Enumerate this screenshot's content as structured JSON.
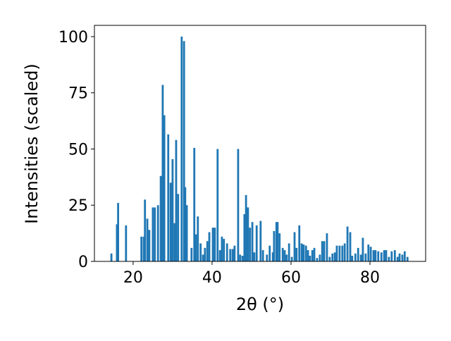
{
  "chart_data": {
    "type": "bar",
    "xlabel": "2θ (°)",
    "ylabel": "Intensities (scaled)",
    "color": "#1f77b4",
    "x": [
      14.5,
      15.9,
      16.2,
      18.2,
      22.1,
      22.7,
      23.0,
      23.6,
      24.1,
      25.0,
      25.5,
      26.3,
      27.0,
      27.5,
      27.9,
      28.9,
      29.5,
      30.0,
      30.5,
      30.9,
      31.4,
      32.3,
      32.9,
      33.2,
      33.6,
      34.8,
      35.5,
      35.9,
      36.4,
      37.1,
      37.7,
      38.2,
      38.8,
      39.3,
      40.2,
      40.7,
      41.4,
      42.0,
      42.5,
      43.0,
      43.8,
      44.6,
      45.2,
      45.7,
      46.6,
      47.1,
      47.7,
      48.2,
      48.6,
      49.1,
      49.6,
      50.2,
      50.7,
      51.3,
      52.3,
      52.9,
      53.9,
      54.6,
      55.4,
      55.7,
      56.3,
      56.6,
      57.1,
      57.9,
      58.4,
      58.9,
      59.5,
      60.2,
      60.9,
      61.4,
      62.1,
      62.7,
      63.2,
      63.8,
      64.3,
      64.8,
      65.4,
      65.9,
      66.6,
      67.3,
      67.9,
      68.4,
      69.1,
      69.8,
      70.5,
      71.1,
      71.6,
      72.3,
      73.0,
      73.6,
      74.3,
      75.0,
      75.5,
      76.3,
      77.0,
      77.7,
      78.2,
      78.9,
      79.6,
      80.2,
      80.9,
      81.4,
      82.1,
      82.9,
      83.6,
      84.1,
      84.8,
      85.5,
      86.3,
      87.0,
      87.5,
      88.2,
      88.8,
      89.5
    ],
    "values": [
      3.5,
      16.5,
      26,
      16,
      11,
      11,
      27.5,
      19,
      14,
      24,
      24,
      25,
      38,
      78.5,
      65,
      56.5,
      35,
      45.5,
      17,
      54,
      30,
      100,
      98,
      33,
      25,
      6,
      50.5,
      12,
      20,
      8,
      3,
      6,
      9,
      13,
      15,
      15,
      50,
      5,
      11,
      10,
      8,
      5.5,
      5.5,
      7,
      50,
      3,
      2.5,
      21,
      29.5,
      24,
      15,
      17.5,
      4,
      16,
      18,
      5,
      3,
      7,
      4,
      13.5,
      17.5,
      17.5,
      12.5,
      6,
      5,
      3,
      8,
      2,
      13,
      6,
      16,
      8,
      7.5,
      7,
      5,
      2.5,
      5,
      6,
      1.5,
      3,
      9,
      9,
      12.5,
      2,
      3.5,
      4,
      7,
      7,
      7,
      8,
      15.5,
      13,
      2.5,
      3.5,
      6,
      3,
      10.5,
      3.5,
      7.5,
      6.5,
      5,
      5,
      4.5,
      4,
      5,
      5,
      2,
      4.5,
      5,
      2,
      3.5,
      3,
      4.5,
      2
    ],
    "xlim": [
      10.2,
      94.1
    ],
    "ylim": [
      0,
      105
    ],
    "xticks": [
      20,
      40,
      60,
      80
    ],
    "yticks": [
      0,
      25,
      50,
      75,
      100
    ]
  }
}
